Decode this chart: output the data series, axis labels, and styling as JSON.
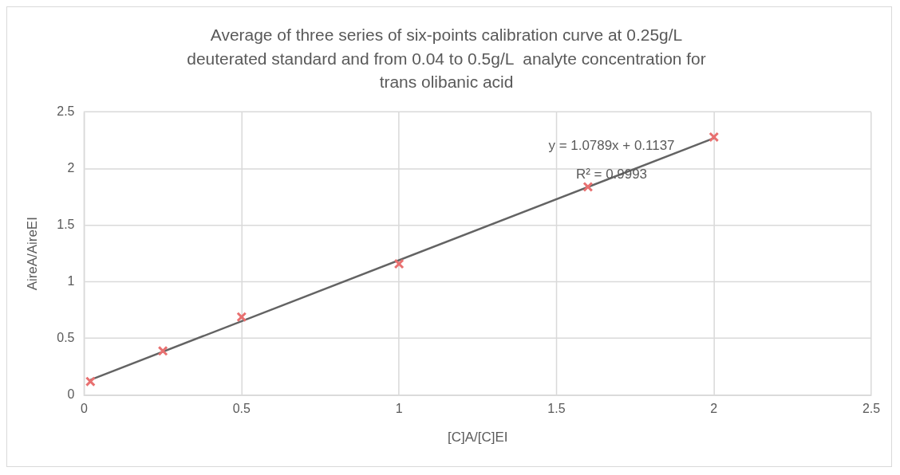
{
  "chart_data": {
    "type": "scatter",
    "title": "Average of three series of six-points calibration curve at 0.25g/L deuterated standard and from 0.04 to 0.5g/L  analyte concentration for trans olibanic acid",
    "xlabel": "[C]A/[C]EI",
    "ylabel": "AireA/AireEI",
    "x": [
      0.02,
      0.25,
      0.5,
      1,
      1.6,
      2
    ],
    "series": [
      {
        "color": "#e87070",
        "values": [
          0.12,
          0.39,
          0.69,
          1.16,
          1.84,
          2.28
        ],
        "marker": "cross"
      },
      {
        "type": "line",
        "color": "#636363",
        "x": [
          0.02,
          2
        ],
        "values": [
          0.135,
          2.27
        ],
        "marker": "none"
      }
    ],
    "xlim": [
      0,
      2.5
    ],
    "xticks": [
      0,
      0.5,
      1,
      1.5,
      2,
      2.5
    ],
    "ylim": [
      0,
      2.5
    ],
    "yticks": [
      0,
      0.5,
      1,
      1.5,
      2,
      2.5
    ],
    "annotations": [
      "y = 1.0789x + 0.1137",
      "R² = 0.9993"
    ],
    "grid": true,
    "legend": false
  }
}
